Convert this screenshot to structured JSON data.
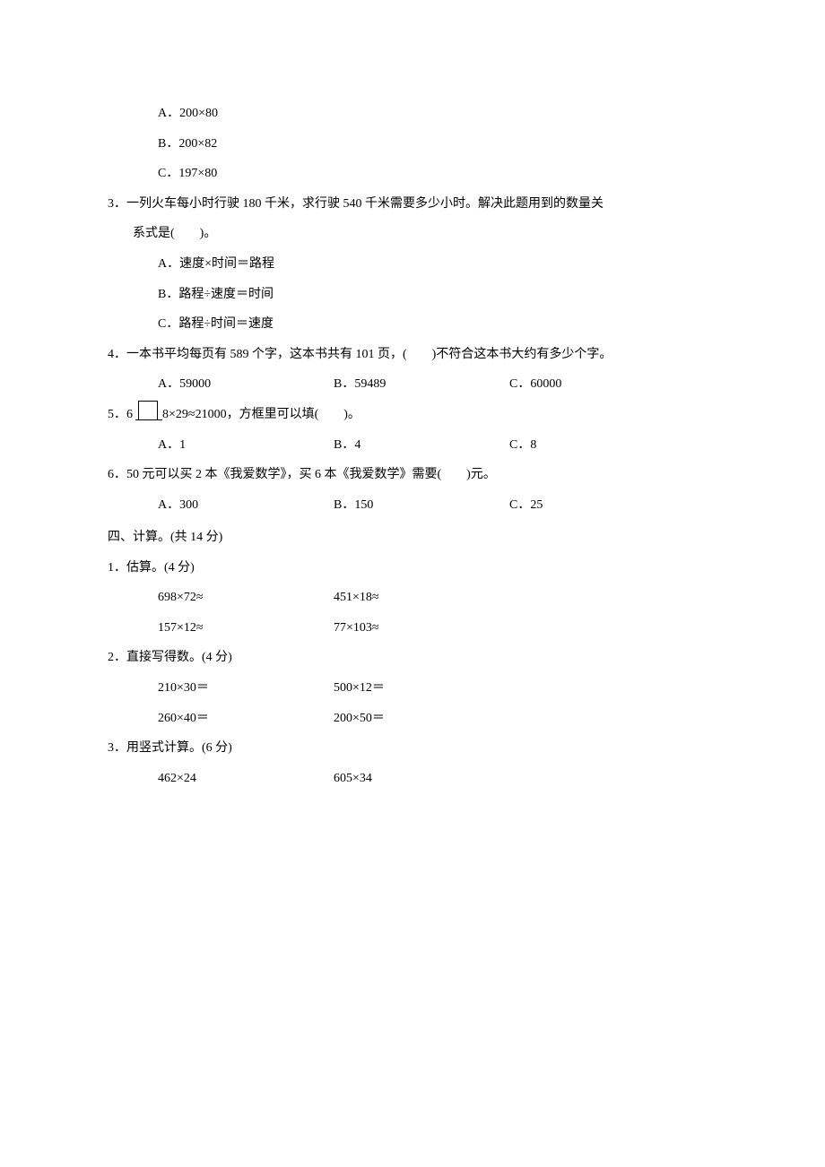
{
  "q2": {
    "opts": {
      "A": "A．200×80",
      "B": "B．200×82",
      "C": "C．197×80"
    }
  },
  "q3": {
    "text": "3．一列火车每小时行驶 180 千米，求行驶 540 千米需要多少小时。解决此题用到的数量关",
    "text2": "系式是(　　)。",
    "opts": {
      "A": "A．速度×时间＝路程",
      "B": "B．路程÷速度＝时间",
      "C": "C．路程÷时间＝速度"
    }
  },
  "q4": {
    "text": "4．一本书平均每页有 589 个字，这本书共有 101 页，(　　)不符合这本书大约有多少个字。",
    "opts": {
      "A": "A．59000",
      "B": "B．59489",
      "C": "C．60000"
    }
  },
  "q5": {
    "pre": "5．6",
    "post": "8×29≈21000，方框里可以填(　　)。",
    "opts": {
      "A": "A．1",
      "B": "B．4",
      "C": "C．8"
    }
  },
  "q6": {
    "text": "6．50 元可以买 2 本《我爱数学》，买 6 本《我爱数学》需要(　　)元。",
    "opts": {
      "A": "A．300",
      "B": "B．150",
      "C": "C．25"
    }
  },
  "s4": {
    "head": "四、计算。(共 14 分)",
    "p1": {
      "head": "1．估算。(4 分)",
      "items": [
        [
          "698×72≈",
          "451×18≈"
        ],
        [
          "157×12≈",
          "77×103≈"
        ]
      ]
    },
    "p2": {
      "head": "2．直接写得数。(4 分)",
      "items": [
        [
          "210×30＝",
          "500×12＝"
        ],
        [
          "260×40＝",
          "200×50＝"
        ]
      ]
    },
    "p3": {
      "head": "3．用竖式计算。(6 分)",
      "items": [
        [
          "462×24",
          "605×34"
        ]
      ]
    }
  }
}
